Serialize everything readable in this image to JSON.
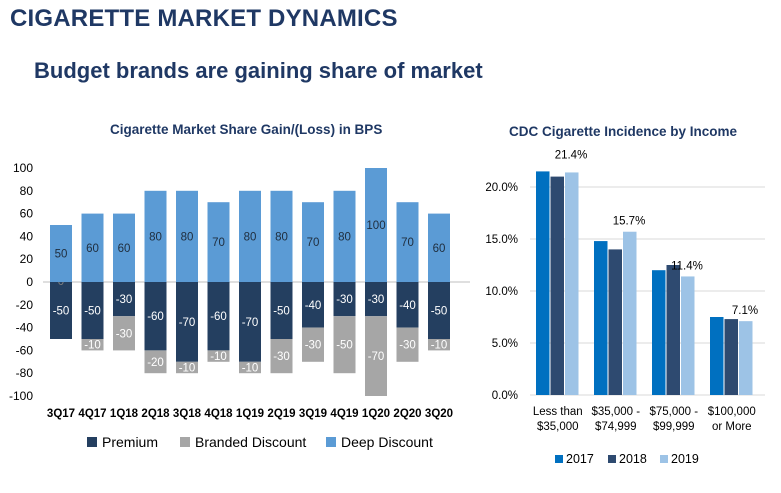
{
  "page": {
    "title": "CIGARETTE MARKET DYNAMICS",
    "subtitle": "Budget brands are gaining share of market"
  },
  "colors": {
    "premium": "#243f60",
    "branded_discount": "#a6a6a6",
    "deep_discount": "#5b9bd5",
    "y2017": "#0070c0",
    "y2018": "#2e4a70",
    "y2019": "#9dc3e6",
    "title_text": "#1f3864"
  },
  "chart_data": [
    {
      "type": "bar",
      "stacked": true,
      "title": "Cigarette Market Share Gain/(Loss) in BPS",
      "categories": [
        "3Q17",
        "4Q17",
        "1Q18",
        "2Q18",
        "3Q18",
        "4Q18",
        "1Q19",
        "2Q19",
        "3Q19",
        "4Q19",
        "1Q20",
        "2Q20",
        "3Q20"
      ],
      "series": [
        {
          "name": "Premium",
          "values": [
            -50,
            -50,
            -30,
            -60,
            -70,
            -60,
            -70,
            -50,
            -40,
            -30,
            -30,
            -40,
            -50
          ]
        },
        {
          "name": "Branded Discount",
          "values": [
            0,
            -10,
            -30,
            -20,
            -10,
            -10,
            -10,
            -30,
            -30,
            -50,
            -70,
            -30,
            -10
          ]
        },
        {
          "name": "Deep Discount",
          "values": [
            50,
            60,
            60,
            80,
            80,
            70,
            80,
            80,
            70,
            80,
            100,
            70,
            60
          ]
        }
      ],
      "ylim": [
        -100,
        100
      ],
      "yticks": [
        100,
        80,
        60,
        40,
        20,
        0,
        -20,
        -40,
        -60,
        -80,
        -100
      ],
      "grid": false,
      "legend": "bottom"
    },
    {
      "type": "bar",
      "title": "CDC Cigarette Incidence by Income",
      "categories": [
        [
          "Less than",
          "$35,000"
        ],
        [
          "$35,000 -",
          "$74,999"
        ],
        [
          "$75,000 -",
          "$99,999"
        ],
        [
          "$100,000",
          "or More"
        ]
      ],
      "series": [
        {
          "name": "2017",
          "values": [
            21.5,
            14.8,
            12.0,
            7.5
          ]
        },
        {
          "name": "2018",
          "values": [
            21.0,
            14.0,
            12.5,
            7.3
          ]
        },
        {
          "name": "2019",
          "values": [
            21.4,
            15.7,
            11.4,
            7.1
          ]
        }
      ],
      "data_labels": [
        "21.4%",
        "15.7%",
        "11.4%",
        "7.1%"
      ],
      "ylim": [
        0,
        22
      ],
      "yticks": [
        "0.0%",
        "5.0%",
        "10.0%",
        "15.0%",
        "20.0%"
      ],
      "grid": true,
      "legend": "bottom"
    }
  ]
}
